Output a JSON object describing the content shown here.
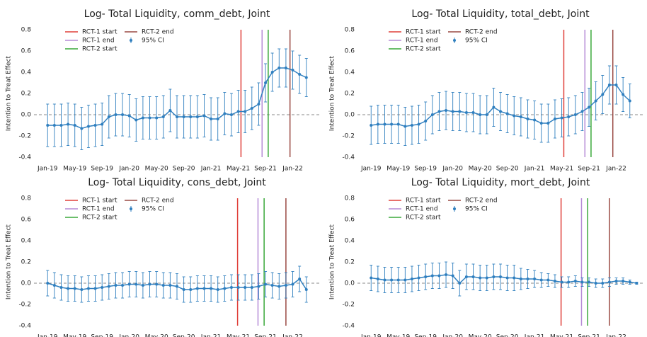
{
  "chart_data": [
    {
      "type": "line",
      "title": "Log- Total Liquidity, comm_debt, Joint",
      "y_label": "Intention to Treat Effect",
      "x": [
        0,
        1,
        2,
        3,
        4,
        5,
        6,
        7,
        8,
        9,
        10,
        11,
        12,
        13,
        14,
        15,
        16,
        17,
        18,
        19,
        20,
        21,
        22,
        23,
        24,
        25,
        26,
        27,
        28,
        29,
        30,
        31,
        32,
        33,
        34,
        35,
        36,
        37,
        38
      ],
      "xlim": [
        -2,
        40
      ],
      "xticks": [
        {
          "value": 0,
          "label": "Jan-19"
        },
        {
          "value": 4,
          "label": "May-19"
        },
        {
          "value": 8,
          "label": "Sep-19"
        },
        {
          "value": 12,
          "label": "Jan-20"
        },
        {
          "value": 16,
          "label": "May-20"
        },
        {
          "value": 20,
          "label": "Sep-20"
        },
        {
          "value": 24,
          "label": "Jan-21"
        },
        {
          "value": 28,
          "label": "May-21"
        },
        {
          "value": 32,
          "label": "Sep-21"
        },
        {
          "value": 36,
          "label": "Jan-22"
        }
      ],
      "ylim": [
        -0.4,
        0.8
      ],
      "yticks": [
        -0.4,
        -0.2,
        {
          "value": 0,
          "label": "0.0"
        },
        0.2,
        0.4,
        0.6,
        0.8
      ],
      "series": [
        {
          "name": "95% CI",
          "color": "#2f7fbf",
          "values": [
            -0.1,
            -0.1,
            -0.1,
            -0.09,
            -0.1,
            -0.13,
            -0.11,
            -0.1,
            -0.09,
            -0.02,
            0.0,
            0.0,
            -0.01,
            -0.05,
            -0.03,
            -0.03,
            -0.03,
            -0.02,
            0.04,
            -0.02,
            -0.02,
            -0.02,
            -0.02,
            -0.01,
            -0.04,
            -0.04,
            0.01,
            0.0,
            0.03,
            0.03,
            0.06,
            0.1,
            0.3,
            0.4,
            0.44,
            0.44,
            0.42,
            0.38,
            0.35
          ],
          "errors": [
            0.2,
            0.2,
            0.2,
            0.2,
            0.2,
            0.2,
            0.2,
            0.2,
            0.2,
            0.2,
            0.2,
            0.2,
            0.2,
            0.2,
            0.2,
            0.2,
            0.2,
            0.2,
            0.2,
            0.2,
            0.2,
            0.2,
            0.2,
            0.2,
            0.2,
            0.2,
            0.2,
            0.2,
            0.2,
            0.2,
            0.2,
            0.2,
            0.18,
            0.18,
            0.18,
            0.18,
            0.18,
            0.18,
            0.18
          ]
        }
      ],
      "vlines": [
        {
          "name": "RCT-1 start",
          "x": 28.4,
          "color": "#e0403a"
        },
        {
          "name": "RCT-1 end",
          "x": 31.5,
          "color": "#b58bd6"
        },
        {
          "name": "RCT-2 start",
          "x": 32.4,
          "color": "#3aa83a"
        },
        {
          "name": "RCT-2 end",
          "x": 35.6,
          "color": "#9a4a44"
        }
      ]
    },
    {
      "type": "line",
      "title": "Log- Total Liquidity, total_debt, Joint",
      "y_label": "Intention to Treat Effect",
      "x": [
        0,
        1,
        2,
        3,
        4,
        5,
        6,
        7,
        8,
        9,
        10,
        11,
        12,
        13,
        14,
        15,
        16,
        17,
        18,
        19,
        20,
        21,
        22,
        23,
        24,
        25,
        26,
        27,
        28,
        29,
        30,
        31,
        32,
        33,
        34,
        35,
        36,
        37,
        38
      ],
      "xlim": [
        -2,
        40
      ],
      "xticks": [
        {
          "value": 0,
          "label": "Jan-19"
        },
        {
          "value": 4,
          "label": "May-19"
        },
        {
          "value": 8,
          "label": "Sep-19"
        },
        {
          "value": 12,
          "label": "Jan-20"
        },
        {
          "value": 16,
          "label": "May-20"
        },
        {
          "value": 20,
          "label": "Sep-20"
        },
        {
          "value": 24,
          "label": "Jan-21"
        },
        {
          "value": 28,
          "label": "May-21"
        },
        {
          "value": 32,
          "label": "Sep-21"
        },
        {
          "value": 36,
          "label": "Jan-22"
        }
      ],
      "ylim": [
        -0.4,
        0.8
      ],
      "yticks": [
        -0.4,
        -0.2,
        {
          "value": 0,
          "label": "0.0"
        },
        0.2,
        0.4,
        0.6,
        0.8
      ],
      "series": [
        {
          "name": "95% CI",
          "color": "#2f7fbf",
          "values": [
            -0.1,
            -0.09,
            -0.09,
            -0.09,
            -0.09,
            -0.11,
            -0.1,
            -0.09,
            -0.06,
            0.0,
            0.03,
            0.04,
            0.03,
            0.03,
            0.02,
            0.02,
            0.0,
            0.0,
            0.07,
            0.03,
            0.01,
            -0.01,
            -0.02,
            -0.04,
            -0.05,
            -0.08,
            -0.08,
            -0.04,
            -0.03,
            -0.02,
            0.0,
            0.03,
            0.07,
            0.13,
            0.19,
            0.28,
            0.28,
            0.19,
            0.13
          ],
          "errors": [
            0.18,
            0.18,
            0.18,
            0.18,
            0.18,
            0.18,
            0.18,
            0.18,
            0.18,
            0.18,
            0.18,
            0.18,
            0.18,
            0.18,
            0.18,
            0.18,
            0.18,
            0.18,
            0.18,
            0.18,
            0.18,
            0.18,
            0.18,
            0.18,
            0.18,
            0.18,
            0.18,
            0.18,
            0.18,
            0.18,
            0.18,
            0.18,
            0.18,
            0.18,
            0.18,
            0.18,
            0.18,
            0.16,
            0.16
          ]
        }
      ],
      "vlines": [
        {
          "name": "RCT-1 start",
          "x": 28.3,
          "color": "#e0403a"
        },
        {
          "name": "RCT-1 end",
          "x": 31.4,
          "color": "#b58bd6"
        },
        {
          "name": "RCT-2 start",
          "x": 32.3,
          "color": "#3aa83a"
        },
        {
          "name": "RCT-2 end",
          "x": 35.5,
          "color": "#9a4a44"
        }
      ]
    },
    {
      "type": "line",
      "title": "Log- Total Liquidity, cons_debt, Joint",
      "y_label": "Intention to Treat Effect",
      "x": [
        0,
        1,
        2,
        3,
        4,
        5,
        6,
        7,
        8,
        9,
        10,
        11,
        12,
        13,
        14,
        15,
        16,
        17,
        18,
        19,
        20,
        21,
        22,
        23,
        24,
        25,
        26,
        27,
        28,
        29,
        30,
        31,
        32,
        33,
        34,
        35,
        36,
        37,
        38
      ],
      "xlim": [
        -2,
        40
      ],
      "xticks": [
        {
          "value": 0,
          "label": "Jan-19"
        },
        {
          "value": 4,
          "label": "May-19"
        },
        {
          "value": 8,
          "label": "Sep-19"
        },
        {
          "value": 12,
          "label": "Jan-20"
        },
        {
          "value": 16,
          "label": "May-20"
        },
        {
          "value": 20,
          "label": "Sep-20"
        },
        {
          "value": 24,
          "label": "Jan-21"
        },
        {
          "value": 28,
          "label": "May-21"
        },
        {
          "value": 32,
          "label": "Sep-21"
        },
        {
          "value": 36,
          "label": "Jan-22"
        }
      ],
      "ylim": [
        -0.4,
        0.8
      ],
      "yticks": [
        -0.4,
        -0.2,
        {
          "value": 0,
          "label": "0.0"
        },
        0.2,
        0.4,
        0.6,
        0.8
      ],
      "series": [
        {
          "name": "95% CI",
          "color": "#2f7fbf",
          "values": [
            0.0,
            -0.02,
            -0.04,
            -0.05,
            -0.05,
            -0.06,
            -0.05,
            -0.05,
            -0.04,
            -0.03,
            -0.02,
            -0.02,
            -0.01,
            -0.01,
            -0.02,
            -0.01,
            -0.01,
            -0.02,
            -0.02,
            -0.03,
            -0.06,
            -0.06,
            -0.05,
            -0.05,
            -0.05,
            -0.06,
            -0.05,
            -0.04,
            -0.04,
            -0.04,
            -0.04,
            -0.03,
            -0.01,
            -0.02,
            -0.03,
            -0.02,
            -0.01,
            0.04,
            -0.06
          ],
          "errors": [
            0.12,
            0.12,
            0.12,
            0.12,
            0.12,
            0.12,
            0.12,
            0.12,
            0.12,
            0.12,
            0.12,
            0.12,
            0.12,
            0.12,
            0.12,
            0.12,
            0.12,
            0.12,
            0.12,
            0.12,
            0.12,
            0.12,
            0.12,
            0.12,
            0.12,
            0.12,
            0.12,
            0.12,
            0.12,
            0.12,
            0.12,
            0.12,
            0.12,
            0.12,
            0.12,
            0.12,
            0.12,
            0.12,
            0.12
          ]
        }
      ],
      "vlines": [
        {
          "name": "RCT-1 start",
          "x": 27.9,
          "color": "#e0403a"
        },
        {
          "name": "RCT-1 end",
          "x": 30.9,
          "color": "#b58bd6"
        },
        {
          "name": "RCT-2 start",
          "x": 31.8,
          "color": "#3aa83a"
        },
        {
          "name": "RCT-2 end",
          "x": 35.0,
          "color": "#9a4a44"
        }
      ]
    },
    {
      "type": "line",
      "title": "Log- Total Liquidity, mort_debt, Joint",
      "y_label": "Intention to Treat Effect",
      "x": [
        0,
        1,
        2,
        3,
        4,
        5,
        6,
        7,
        8,
        9,
        10,
        11,
        12,
        13,
        14,
        15,
        16,
        17,
        18,
        19,
        20,
        21,
        22,
        23,
        24,
        25,
        26,
        27,
        28,
        29,
        30,
        31,
        32,
        33,
        34,
        35,
        36,
        37,
        38,
        39
      ],
      "xlim": [
        -2,
        40
      ],
      "xticks": [
        {
          "value": 0,
          "label": "Jan-19"
        },
        {
          "value": 4,
          "label": "May-19"
        },
        {
          "value": 8,
          "label": "Sep-19"
        },
        {
          "value": 12,
          "label": "Jan-20"
        },
        {
          "value": 16,
          "label": "May-20"
        },
        {
          "value": 20,
          "label": "Sep-20"
        },
        {
          "value": 24,
          "label": "Jan-21"
        },
        {
          "value": 28,
          "label": "May-21"
        },
        {
          "value": 32,
          "label": "Sep-21"
        },
        {
          "value": 36,
          "label": "Jan-22"
        }
      ],
      "ylim": [
        -0.4,
        0.8
      ],
      "yticks": [
        -0.4,
        -0.2,
        {
          "value": 0,
          "label": "0.0"
        },
        0.2,
        0.4,
        0.6,
        0.8
      ],
      "series": [
        {
          "name": "95% CI",
          "color": "#2f7fbf",
          "values": [
            0.05,
            0.04,
            0.03,
            0.03,
            0.03,
            0.03,
            0.04,
            0.05,
            0.06,
            0.07,
            0.07,
            0.08,
            0.07,
            0.0,
            0.06,
            0.06,
            0.05,
            0.05,
            0.06,
            0.06,
            0.05,
            0.05,
            0.04,
            0.04,
            0.04,
            0.03,
            0.03,
            0.02,
            0.01,
            0.01,
            0.02,
            0.01,
            0.01,
            0.0,
            0.0,
            0.01,
            0.02,
            0.02,
            0.01,
            0.0
          ],
          "errors": [
            0.12,
            0.12,
            0.12,
            0.12,
            0.12,
            0.12,
            0.12,
            0.12,
            0.12,
            0.12,
            0.12,
            0.12,
            0.12,
            0.12,
            0.12,
            0.12,
            0.12,
            0.12,
            0.12,
            0.12,
            0.12,
            0.12,
            0.1,
            0.09,
            0.08,
            0.07,
            0.06,
            0.06,
            0.05,
            0.05,
            0.05,
            0.04,
            0.04,
            0.04,
            0.04,
            0.04,
            0.03,
            0.03,
            0.02,
            0.01
          ]
        }
      ],
      "vlines": [
        {
          "name": "RCT-1 start",
          "x": 27.9,
          "color": "#e0403a"
        },
        {
          "name": "RCT-1 end",
          "x": 30.9,
          "color": "#b58bd6"
        },
        {
          "name": "RCT-2 start",
          "x": 31.8,
          "color": "#3aa83a"
        },
        {
          "name": "RCT-2 end",
          "x": 35.0,
          "color": "#9a4a44"
        }
      ]
    }
  ]
}
